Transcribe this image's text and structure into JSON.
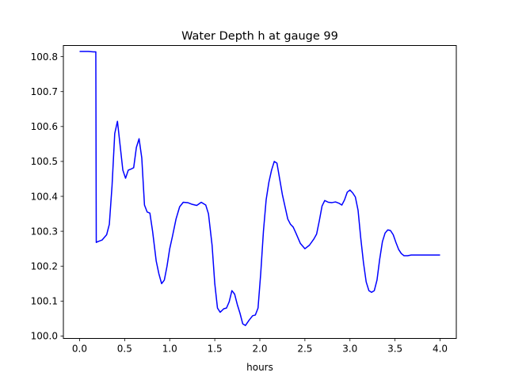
{
  "chart_data": {
    "type": "line",
    "title": "Water Depth h at gauge 99",
    "xlabel": "hours",
    "ylabel": "",
    "xlim": [
      -0.18,
      4.18
    ],
    "ylim": [
      99.993,
      100.832
    ],
    "xticks": [
      0.0,
      0.5,
      1.0,
      1.5,
      2.0,
      2.5,
      3.0,
      3.5,
      4.0
    ],
    "xtick_labels": [
      "0.0",
      "0.5",
      "1.0",
      "1.5",
      "2.0",
      "2.5",
      "3.0",
      "3.5",
      "4.0"
    ],
    "yticks": [
      100.0,
      100.1,
      100.2,
      100.3,
      100.4,
      100.5,
      100.6,
      100.7,
      100.8
    ],
    "ytick_labels": [
      "100.0",
      "100.1",
      "100.2",
      "100.3",
      "100.4",
      "100.5",
      "100.6",
      "100.7",
      "100.8"
    ],
    "grid": false,
    "line_color": "#0000ff",
    "series": [
      {
        "name": "",
        "x": [
          0.0,
          0.05,
          0.1,
          0.15,
          0.18,
          0.185,
          0.2,
          0.25,
          0.3,
          0.33,
          0.36,
          0.39,
          0.42,
          0.45,
          0.48,
          0.51,
          0.54,
          0.57,
          0.6,
          0.63,
          0.66,
          0.69,
          0.72,
          0.75,
          0.78,
          0.81,
          0.85,
          0.88,
          0.91,
          0.94,
          0.97,
          1.0,
          1.03,
          1.07,
          1.11,
          1.15,
          1.2,
          1.25,
          1.3,
          1.35,
          1.4,
          1.43,
          1.47,
          1.5,
          1.53,
          1.56,
          1.6,
          1.63,
          1.66,
          1.69,
          1.72,
          1.75,
          1.78,
          1.81,
          1.84,
          1.88,
          1.92,
          1.95,
          1.98,
          2.01,
          2.04,
          2.07,
          2.1,
          2.13,
          2.16,
          2.19,
          2.22,
          2.25,
          2.28,
          2.31,
          2.34,
          2.37,
          2.4,
          2.45,
          2.5,
          2.55,
          2.6,
          2.63,
          2.66,
          2.69,
          2.72,
          2.76,
          2.8,
          2.84,
          2.88,
          2.91,
          2.94,
          2.97,
          3.0,
          3.03,
          3.06,
          3.09,
          3.12,
          3.15,
          3.18,
          3.21,
          3.24,
          3.27,
          3.3,
          3.33,
          3.36,
          3.39,
          3.42,
          3.45,
          3.48,
          3.51,
          3.54,
          3.57,
          3.6,
          3.64,
          3.68,
          3.72,
          3.76,
          3.8,
          3.84,
          3.88,
          3.92,
          3.96,
          4.0
        ],
        "y": [
          100.815,
          100.815,
          100.815,
          100.814,
          100.814,
          100.268,
          100.27,
          100.275,
          100.29,
          100.32,
          100.43,
          100.58,
          100.615,
          100.545,
          100.475,
          100.452,
          100.475,
          100.478,
          100.482,
          100.54,
          100.565,
          100.51,
          100.375,
          100.355,
          100.352,
          100.3,
          100.215,
          100.178,
          100.15,
          100.16,
          100.2,
          100.25,
          100.285,
          100.335,
          100.37,
          100.383,
          100.382,
          100.377,
          100.374,
          100.383,
          100.375,
          100.35,
          100.26,
          100.15,
          100.08,
          100.068,
          100.078,
          100.08,
          100.098,
          100.13,
          100.12,
          100.09,
          100.065,
          100.035,
          100.03,
          100.045,
          100.058,
          100.06,
          100.08,
          100.18,
          100.3,
          100.39,
          100.44,
          100.475,
          100.5,
          100.495,
          100.45,
          100.405,
          100.37,
          100.335,
          100.32,
          100.312,
          100.295,
          100.265,
          100.25,
          100.26,
          100.278,
          100.292,
          100.33,
          100.372,
          100.388,
          100.383,
          100.382,
          100.384,
          100.38,
          100.375,
          100.39,
          100.412,
          100.418,
          100.41,
          100.398,
          100.36,
          100.28,
          100.21,
          100.155,
          100.13,
          100.125,
          100.13,
          100.16,
          100.22,
          100.27,
          100.295,
          100.304,
          100.302,
          100.29,
          100.268,
          100.248,
          100.236,
          100.23,
          100.23,
          100.232,
          100.232,
          100.232,
          100.232,
          100.232,
          100.232,
          100.232,
          100.232,
          100.232
        ]
      }
    ]
  }
}
